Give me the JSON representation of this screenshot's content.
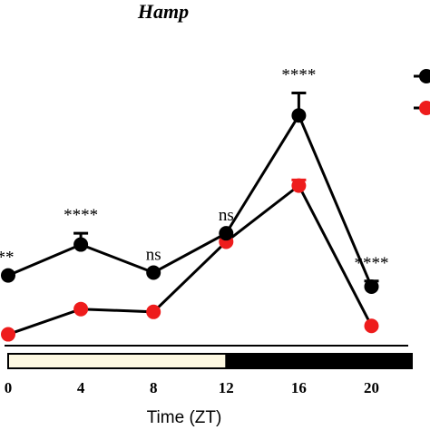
{
  "chart_data": {
    "type": "line",
    "title": "Hamp",
    "xlabel": "Time (ZT)",
    "ylabel": "",
    "x": [
      0,
      4,
      8,
      12,
      16,
      20
    ],
    "xticks": [
      "0",
      "4",
      "8",
      "12",
      "16",
      "20"
    ],
    "xlim": [
      0,
      22
    ],
    "ylim": [
      0,
      10
    ],
    "series": [
      {
        "color": "#000000",
        "values": [
          2.6,
          3.7,
          2.7,
          4.1,
          8.3,
          2.2
        ],
        "error": [
          0,
          0.4,
          0,
          0,
          0.8,
          0.2
        ]
      },
      {
        "color": "#ee1c1c",
        "values": [
          0.5,
          1.4,
          1.3,
          3.8,
          5.8,
          0.8
        ],
        "error": [
          0,
          0,
          0,
          0,
          0.2,
          0
        ]
      }
    ],
    "significance": [
      "**",
      "****",
      "ns",
      "ns",
      "****",
      "****"
    ],
    "light_dark_bar": [
      {
        "phase": "light",
        "from": 0,
        "to": 12,
        "color": "#fdf8e1"
      },
      {
        "phase": "dark",
        "from": 12,
        "to": 22,
        "color": "#000000"
      }
    ],
    "legend": {
      "position": "right"
    }
  }
}
